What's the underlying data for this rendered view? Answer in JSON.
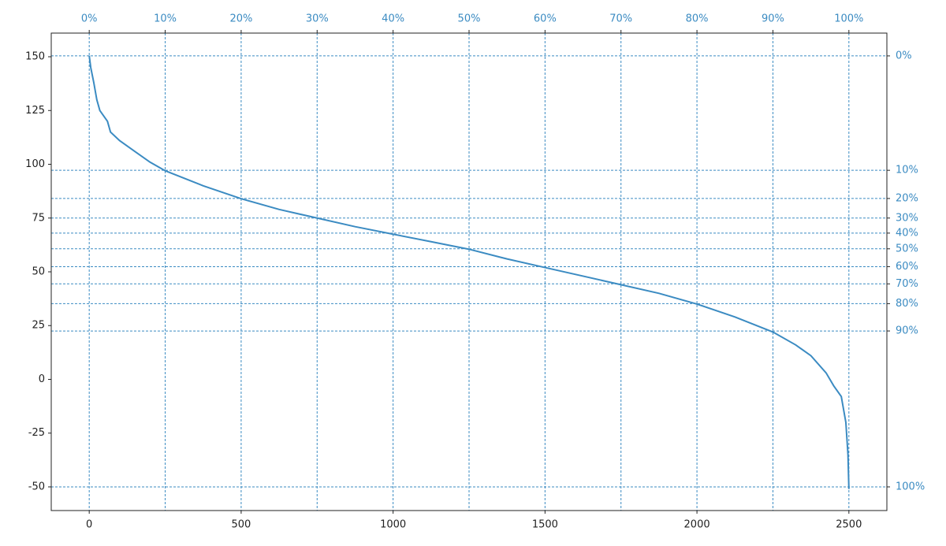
{
  "chart_data": {
    "type": "line",
    "x": [
      0,
      5,
      15,
      25,
      35,
      60,
      70,
      100,
      150,
      200,
      250,
      375,
      500,
      625,
      750,
      875,
      1000,
      1125,
      1250,
      1375,
      1500,
      1625,
      1750,
      1875,
      2000,
      2125,
      2250,
      2325,
      2375,
      2425,
      2450,
      2475,
      2490,
      2497,
      2500
    ],
    "values": [
      150.5,
      145,
      138,
      130,
      125,
      120,
      115,
      111,
      106,
      101,
      97,
      90,
      84,
      79,
      75,
      71,
      67.5,
      64,
      60.5,
      56,
      52,
      48,
      44,
      40,
      35,
      29,
      22,
      16,
      11,
      3,
      -3,
      -8,
      -20,
      -35,
      -51
    ],
    "color": "#3b8bc2",
    "xlim": [
      -125,
      2625
    ],
    "xticks": [
      0,
      500,
      1000,
      1500,
      2000,
      2500
    ],
    "ylim": [
      -61,
      161
    ],
    "yticks": [
      -50,
      -25,
      0,
      25,
      50,
      75,
      100,
      125,
      150
    ],
    "x2lim": [
      -5,
      105
    ],
    "x2ticks": [
      {
        "value": 0,
        "label": "0%"
      },
      {
        "value": 10,
        "label": "10%"
      },
      {
        "value": 20,
        "label": "20%"
      },
      {
        "value": 30,
        "label": "30%"
      },
      {
        "value": 40,
        "label": "40%"
      },
      {
        "value": 50,
        "label": "50%"
      },
      {
        "value": 60,
        "label": "60%"
      },
      {
        "value": 70,
        "label": "70%"
      },
      {
        "value": 80,
        "label": "80%"
      },
      {
        "value": 90,
        "label": "90%"
      },
      {
        "value": 100,
        "label": "100%"
      }
    ],
    "percentile_lines": [
      {
        "label": "0%",
        "y": 150.4
      },
      {
        "label": "10%",
        "y": 97.2
      },
      {
        "label": "20%",
        "y": 84.1
      },
      {
        "label": "30%",
        "y": 75.0
      },
      {
        "label": "40%",
        "y": 68.0
      },
      {
        "label": "50%",
        "y": 60.7
      },
      {
        "label": "60%",
        "y": 52.4
      },
      {
        "label": "70%",
        "y": 44.4
      },
      {
        "label": "80%",
        "y": 35.2
      },
      {
        "label": "90%",
        "y": 22.5
      },
      {
        "label": "100%",
        "y": -50
      }
    ],
    "grid": true
  }
}
